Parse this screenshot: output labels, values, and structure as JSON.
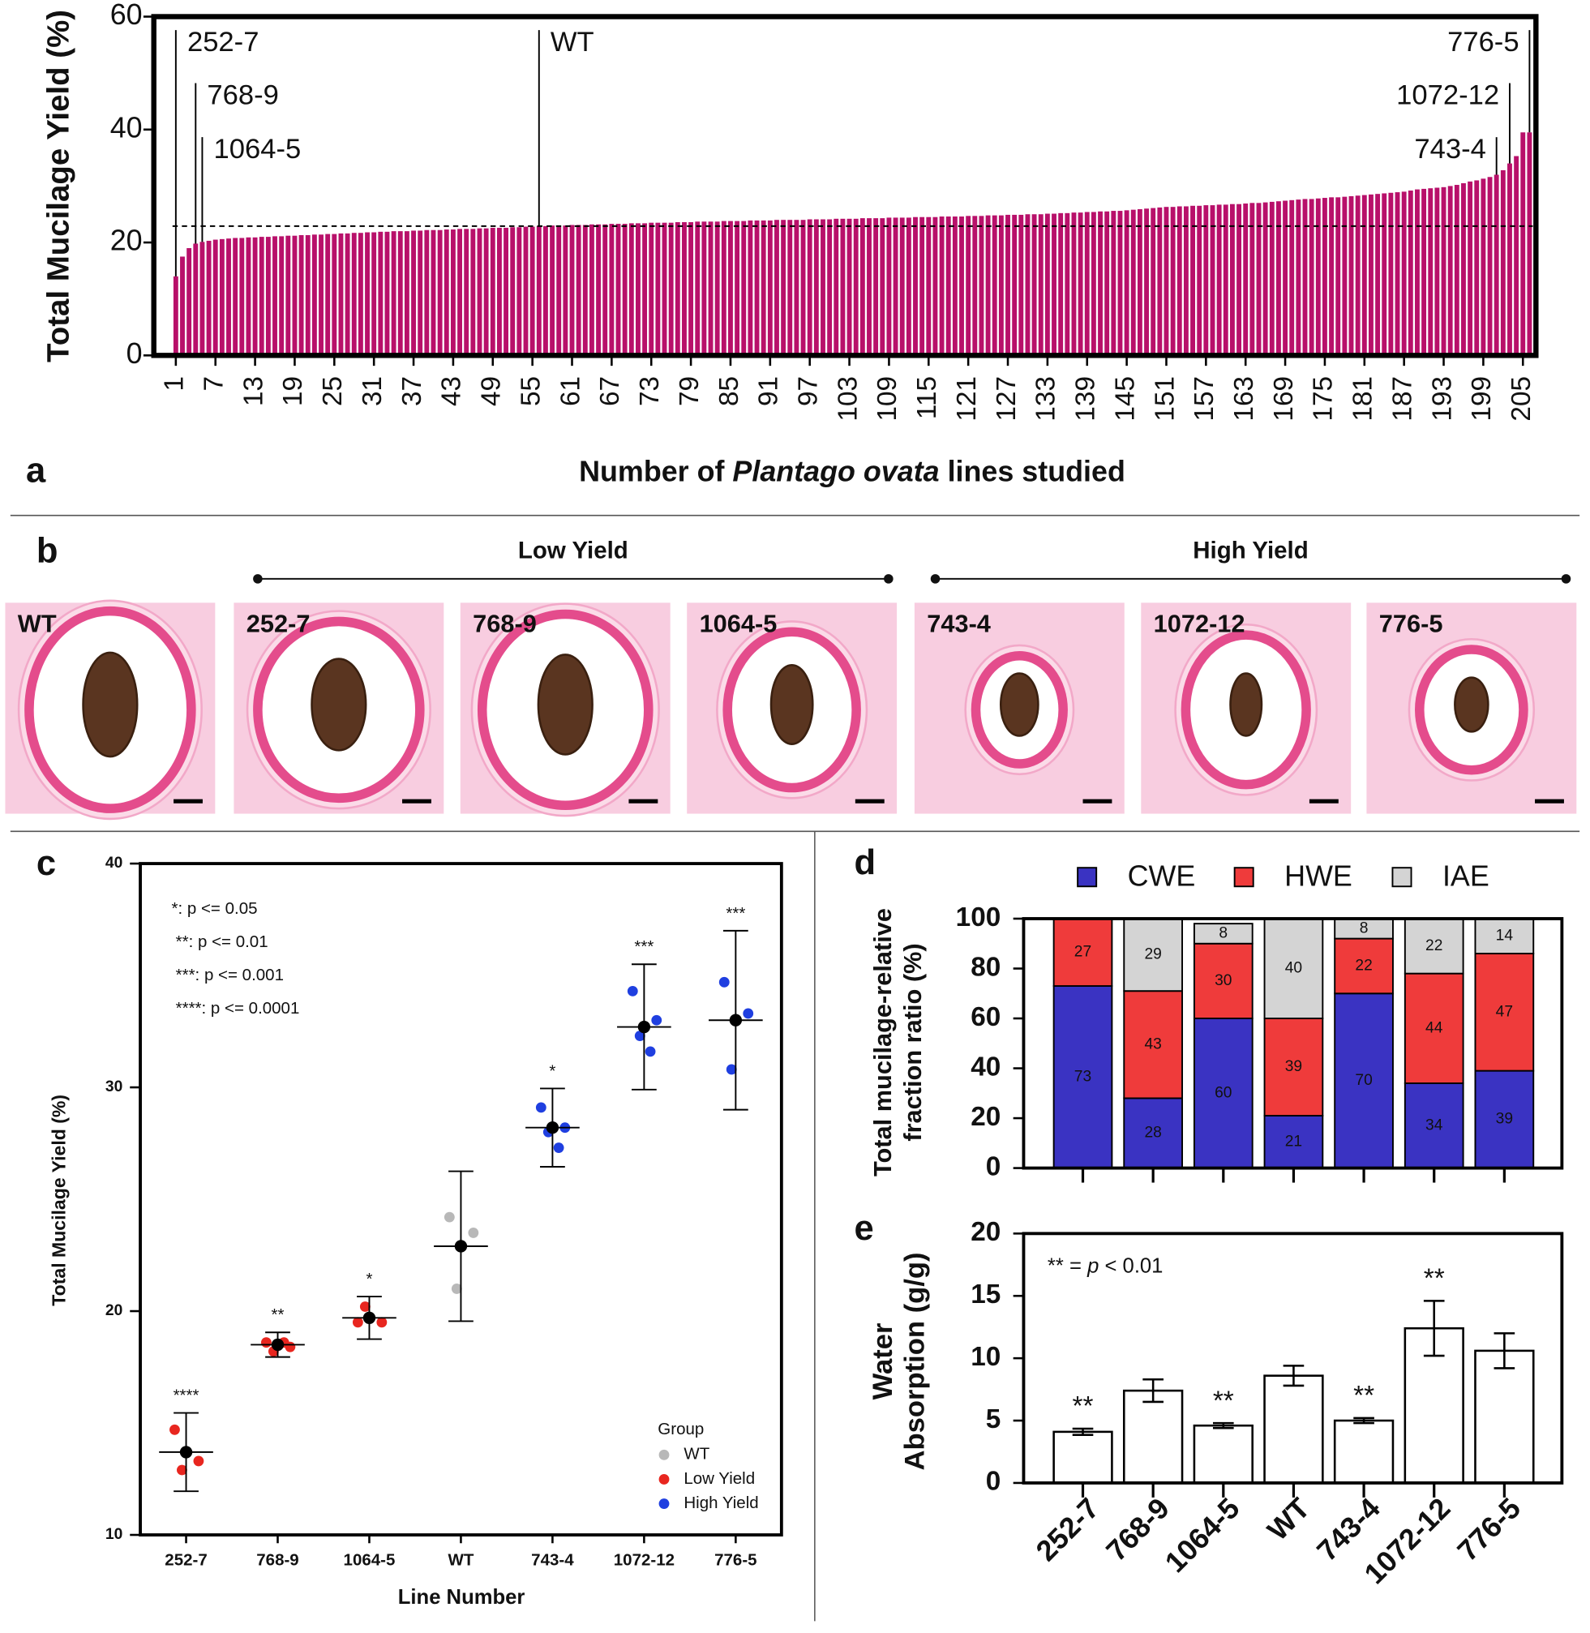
{
  "panel_labels": [
    "a",
    "b",
    "c",
    "d",
    "e"
  ],
  "panel_b": {
    "groups": [
      "Low Yield",
      "High Yield"
    ],
    "images": [
      "WT",
      "252-7",
      "768-9",
      "1064-5",
      "743-4",
      "1072-12",
      "776-5"
    ]
  },
  "chart_data": [
    {
      "type": "bar",
      "y_label": "Total Mucilage Yield (%)",
      "x_label": [
        "Number of ",
        "Plantago ovata",
        " lines studied"
      ],
      "color": "#b8106a",
      "ylim": [
        0,
        60
      ],
      "yticks": [
        0,
        20,
        40,
        60
      ],
      "reference_line": 22.9,
      "annotations": [
        {
          "text": "252-7",
          "line": 1
        },
        {
          "text": "768-9",
          "line": 4
        },
        {
          "text": "1064-5",
          "line": 5
        },
        {
          "text": "WT",
          "line": 56
        },
        {
          "text": "743-4",
          "line": 201
        },
        {
          "text": "1072-12",
          "line": 203
        },
        {
          "text": "776-5",
          "line": 206
        }
      ],
      "categories": [
        1,
        null,
        null,
        null,
        null,
        null,
        7,
        null,
        null,
        null,
        null,
        null,
        13,
        null,
        null,
        null,
        null,
        null,
        19,
        null,
        null,
        null,
        null,
        null,
        25,
        null,
        null,
        null,
        null,
        null,
        31,
        null,
        null,
        null,
        null,
        null,
        37,
        null,
        null,
        null,
        null,
        null,
        43,
        null,
        null,
        null,
        null,
        null,
        49,
        null,
        null,
        null,
        null,
        null,
        55,
        null,
        null,
        null,
        null,
        null,
        61,
        null,
        null,
        null,
        null,
        null,
        67,
        null,
        null,
        null,
        null,
        null,
        73,
        null,
        null,
        null,
        null,
        null,
        79,
        null,
        null,
        null,
        null,
        null,
        85,
        null,
        null,
        null,
        null,
        null,
        91,
        null,
        null,
        null,
        null,
        null,
        97,
        null,
        null,
        null,
        null,
        null,
        103,
        null,
        null,
        null,
        null,
        null,
        109,
        null,
        null,
        null,
        null,
        null,
        115,
        null,
        null,
        null,
        null,
        null,
        121,
        null,
        null,
        null,
        null,
        null,
        127,
        null,
        null,
        null,
        null,
        null,
        133,
        null,
        null,
        null,
        null,
        null,
        139,
        null,
        null,
        null,
        null,
        null,
        145,
        null,
        null,
        null,
        null,
        null,
        151,
        null,
        null,
        null,
        null,
        null,
        157,
        null,
        null,
        null,
        null,
        null,
        163,
        null,
        null,
        null,
        null,
        null,
        169,
        null,
        null,
        null,
        null,
        null,
        175,
        null,
        null,
        null,
        null,
        null,
        181,
        null,
        null,
        null,
        null,
        null,
        187,
        null,
        null,
        null,
        null,
        null,
        193,
        null,
        null,
        null,
        null,
        null,
        199,
        null,
        null,
        null,
        null,
        null,
        205,
        null
      ],
      "values": [
        14,
        17.5,
        19,
        19.8,
        20.1,
        20.3,
        20.5,
        20.6,
        20.7,
        20.8,
        20.8,
        20.9,
        20.9,
        21,
        21,
        21.1,
        21.1,
        21.2,
        21.2,
        21.3,
        21.3,
        21.4,
        21.4,
        21.5,
        21.5,
        21.6,
        21.6,
        21.7,
        21.7,
        21.8,
        21.8,
        21.9,
        21.9,
        22,
        22,
        22,
        22.1,
        22.1,
        22.2,
        22.2,
        22.2,
        22.3,
        22.3,
        22.4,
        22.4,
        22.4,
        22.5,
        22.5,
        22.6,
        22.6,
        22.6,
        22.7,
        22.7,
        22.8,
        22.8,
        22.9,
        22.9,
        23,
        23,
        23,
        23.1,
        23.1,
        23.1,
        23.2,
        23.2,
        23.2,
        23.3,
        23.3,
        23.3,
        23.4,
        23.4,
        23.4,
        23.5,
        23.5,
        23.5,
        23.5,
        23.6,
        23.6,
        23.6,
        23.7,
        23.7,
        23.7,
        23.7,
        23.8,
        23.8,
        23.8,
        23.8,
        23.9,
        23.9,
        23.9,
        23.9,
        24,
        24,
        24,
        24,
        24,
        24.1,
        24.1,
        24.1,
        24.1,
        24.2,
        24.2,
        24.2,
        24.2,
        24.3,
        24.3,
        24.3,
        24.3,
        24.4,
        24.4,
        24.4,
        24.4,
        24.5,
        24.5,
        24.5,
        24.5,
        24.6,
        24.6,
        24.6,
        24.6,
        24.7,
        24.7,
        24.7,
        24.8,
        24.8,
        24.8,
        24.9,
        24.9,
        24.9,
        25,
        25,
        25,
        25.1,
        25.1,
        25.2,
        25.2,
        25.3,
        25.3,
        25.4,
        25.4,
        25.5,
        25.5,
        25.6,
        25.6,
        25.7,
        25.8,
        25.9,
        26,
        26.1,
        26.2,
        26.3,
        26.3,
        26.4,
        26.4,
        26.5,
        26.5,
        26.6,
        26.6,
        26.7,
        26.7,
        26.8,
        26.8,
        26.9,
        27,
        27,
        27.1,
        27.2,
        27.3,
        27.4,
        27.5,
        27.6,
        27.7,
        27.7,
        27.8,
        27.9,
        28,
        28,
        28.1,
        28.2,
        28.3,
        28.4,
        28.5,
        28.6,
        28.7,
        28.8,
        28.9,
        29,
        29.2,
        29.4,
        29.5,
        29.6,
        29.7,
        29.8,
        30,
        30.2,
        30.5,
        30.8,
        31,
        31.3,
        31.6,
        32,
        32.8,
        34,
        35.3,
        39.5,
        39.5
      ]
    },
    {
      "type": "dotplot",
      "y_label": "Total Mucilage Yield (%)",
      "x_label": "Line Number",
      "ylim": [
        10,
        40
      ],
      "yticks": [
        10,
        20,
        30,
        40
      ],
      "notes": [
        "*: p <= 0.05",
        "**: p <= 0.01",
        "***: p <= 0.001",
        "****: p <= 0.0001"
      ],
      "legend_title": "Group",
      "groups": [
        {
          "name": "WT",
          "color": "#b8b8b8"
        },
        {
          "name": "Low Yield",
          "color": "#e8261f"
        },
        {
          "name": "High Yield",
          "color": "#1f3fe0"
        }
      ],
      "lines": [
        {
          "name": "252-7",
          "group": "Low Yield",
          "mean": 13.7,
          "sd": 1.75,
          "points": [
            14.7,
            13.3,
            12.9
          ],
          "significance": "****"
        },
        {
          "name": "768-9",
          "group": "Low Yield",
          "mean": 18.5,
          "sd": 0.55,
          "points": [
            18.6,
            18.4,
            18.2,
            18.6
          ],
          "significance": "**"
        },
        {
          "name": "1064-5",
          "group": "Low Yield",
          "mean": 19.7,
          "sd": 0.95,
          "points": [
            19.5,
            19.5,
            20.2
          ],
          "significance": "*"
        },
        {
          "name": "WT",
          "group": "WT",
          "mean": 22.9,
          "sd": 3.35,
          "points": [
            24.2,
            23.5,
            21
          ],
          "significance": null
        },
        {
          "name": "743-4",
          "group": "High Yield",
          "mean": 28.2,
          "sd": 1.75,
          "points": [
            29.1,
            28.2,
            28,
            27.3
          ],
          "significance": "*"
        },
        {
          "name": "1072-12",
          "group": "High Yield",
          "mean": 32.7,
          "sd": 2.8,
          "points": [
            34.3,
            33,
            32.3,
            31.6
          ],
          "significance": "***"
        },
        {
          "name": "776-5",
          "group": "High Yield",
          "mean": 33,
          "sd": 4,
          "points": [
            34.7,
            33.3,
            30.8
          ],
          "significance": "***"
        }
      ]
    },
    {
      "type": "stacked_bar",
      "y_label": [
        "Total mucilage-relative",
        "fraction ratio (%)"
      ],
      "ylim": [
        0,
        100
      ],
      "yticks": [
        0,
        20,
        40,
        60,
        80,
        100
      ],
      "series": [
        {
          "name": "CWE",
          "color": "#3a33c2",
          "values": [
            73,
            28,
            60,
            21,
            70,
            34,
            39
          ]
        },
        {
          "name": "HWE",
          "color": "#ef3b3b",
          "values": [
            27,
            43,
            30,
            39,
            22,
            44,
            47
          ]
        },
        {
          "name": "IAE",
          "color": "#d4d4d4",
          "values": [
            null,
            29,
            8,
            40,
            8,
            22,
            14
          ]
        }
      ]
    },
    {
      "type": "bar",
      "y_label": [
        "Water",
        "Absorption (g/g)"
      ],
      "note": [
        "** = ",
        "p",
        " < 0.01"
      ],
      "ylim": [
        0,
        20
      ],
      "yticks": [
        0,
        5,
        10,
        15,
        20
      ],
      "categories": [
        "252-7",
        "768-9",
        "1064-5",
        "WT",
        "743-4",
        "1072-12",
        "776-5"
      ],
      "values": [
        4.1,
        7.4,
        4.6,
        8.6,
        5,
        12.4,
        10.6
      ],
      "errors": [
        0.25,
        0.9,
        0.2,
        0.8,
        0.2,
        2.2,
        1.4
      ],
      "significance": [
        "**",
        null,
        "**",
        null,
        "**",
        "**",
        null
      ]
    }
  ]
}
